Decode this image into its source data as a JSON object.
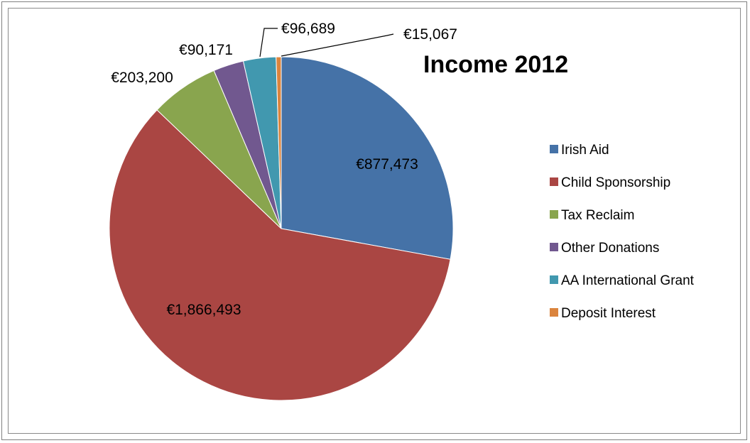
{
  "chart_data": {
    "type": "pie",
    "title": "Income 2012",
    "legend_position": "right",
    "slices": [
      {
        "name": "Irish Aid",
        "value": 877473,
        "label": "€877,473",
        "color": "#4572A7"
      },
      {
        "name": "Child Sponsorship",
        "value": 1866493,
        "label": "€1,866,493",
        "color": "#AA4643"
      },
      {
        "name": "Tax Reclaim",
        "value": 203200,
        "label": "€203,200",
        "color": "#89A54E"
      },
      {
        "name": "Other Donations",
        "value": 90171,
        "label": "€90,171",
        "color": "#71588F"
      },
      {
        "name": "AA International Grant",
        "value": 96689,
        "label": "€96,689",
        "color": "#4198AF"
      },
      {
        "name": "Deposit Interest",
        "value": 15067,
        "label": "€15,067",
        "color": "#DB843D"
      }
    ]
  }
}
